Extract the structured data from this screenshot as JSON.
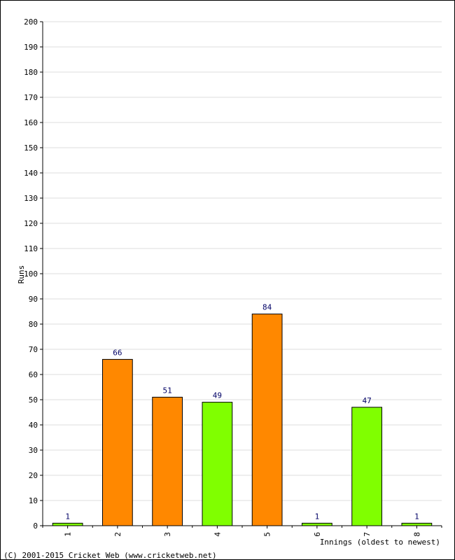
{
  "chart_data": {
    "type": "bar",
    "title": "",
    "ylabel": "Runs",
    "xlabel": "Innings (oldest to newest)",
    "ylim": [
      0,
      200
    ],
    "ytick_step": 10,
    "grid": true,
    "categories": [
      "1",
      "2",
      "3",
      "4",
      "5",
      "6",
      "7",
      "8"
    ],
    "values": [
      1,
      66,
      51,
      49,
      84,
      1,
      47,
      1
    ],
    "bar_colors": [
      "#80ff00",
      "#ff8800",
      "#ff8800",
      "#80ff00",
      "#ff8800",
      "#80ff00",
      "#80ff00",
      "#80ff00"
    ],
    "data_labels": [
      "1",
      "66",
      "51",
      "49",
      "84",
      "1",
      "47",
      "1"
    ]
  },
  "footer": {
    "copyright": "(C) 2001-2015 Cricket Web (www.cricketweb.net)"
  }
}
